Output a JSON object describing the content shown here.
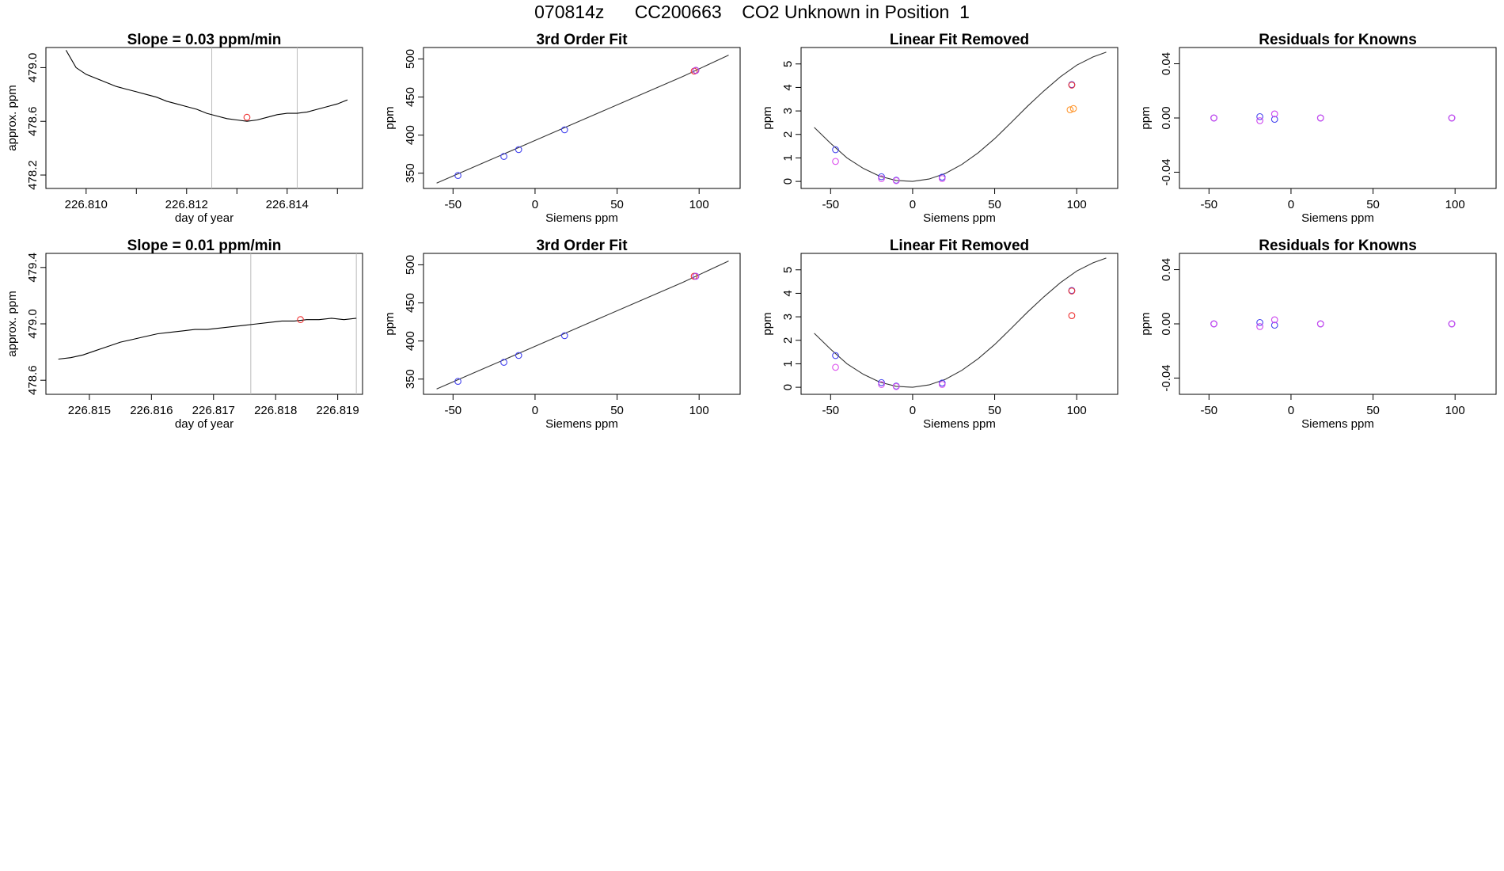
{
  "header": {
    "title": "070814z      CC200663    CO2 Unknown in Position  1"
  },
  "chart_data": [
    {
      "type": "line",
      "panel": "row1-col1",
      "title": "Slope =  0.03  ppm/min",
      "xlabel": "day of year",
      "ylabel": "approx. ppm",
      "xlim": [
        226.8092,
        226.8155
      ],
      "ylim": [
        478.1,
        479.15
      ],
      "xticks": [
        226.81,
        226.811,
        226.812,
        226.813,
        226.814,
        226.815
      ],
      "xtick_labels": [
        "226.810",
        "",
        "226.812",
        "",
        "226.814",
        ""
      ],
      "yticks": [
        478.2,
        478.6,
        479.0
      ],
      "ytick_labels": [
        "478.2",
        "478.6",
        "479.0"
      ],
      "vlines": [
        226.8125,
        226.8142
      ],
      "vline_color": "#bbbbbb",
      "series": [
        {
          "x": [
            226.8096,
            226.8098,
            226.81,
            226.8102,
            226.8104,
            226.8106,
            226.8108,
            226.811,
            226.8112,
            226.8114,
            226.8116,
            226.8118,
            226.812,
            226.8122,
            226.8124,
            226.8126,
            226.8128,
            226.813,
            226.8132,
            226.8134,
            226.8136,
            226.8138,
            226.814,
            226.8142,
            226.8144,
            226.8146,
            226.8148,
            226.815,
            226.8152
          ],
          "y": [
            479.13,
            479.0,
            478.95,
            478.92,
            478.89,
            478.86,
            478.84,
            478.82,
            478.8,
            478.78,
            478.75,
            478.73,
            478.71,
            478.69,
            478.66,
            478.64,
            478.62,
            478.61,
            478.6,
            478.61,
            478.63,
            478.65,
            478.66,
            478.66,
            478.67,
            478.69,
            478.71,
            478.73,
            478.76
          ],
          "color": "#000000"
        }
      ],
      "points": [
        {
          "x": 226.8132,
          "y": 478.63,
          "color": "#ee3333"
        }
      ]
    },
    {
      "type": "scatter",
      "panel": "row1-col2",
      "title": "3rd Order Fit",
      "xlabel": "Siemens ppm",
      "ylabel": "ppm",
      "xlim": [
        -68,
        125
      ],
      "ylim": [
        330,
        515
      ],
      "xticks": [
        -50,
        0,
        50,
        100
      ],
      "yticks": [
        350,
        400,
        450,
        500
      ],
      "curve": {
        "x": [
          -60,
          -30,
          0,
          30,
          60,
          90,
          118
        ],
        "y": [
          337,
          365,
          393,
          421,
          449,
          477,
          505
        ]
      },
      "series": [
        {
          "name": "",
          "color": "#4444ee",
          "x": [
            -47,
            -19,
            -10,
            18
          ],
          "y": [
            347,
            372,
            381,
            407
          ]
        },
        {
          "name": "",
          "color": "#ee3333",
          "x": [
            97,
            98
          ],
          "y": [
            484,
            485
          ]
        },
        {
          "name": "",
          "color": "#aa44ee",
          "x": [
            98
          ],
          "y": [
            485
          ]
        }
      ]
    },
    {
      "type": "scatter",
      "panel": "row1-col3",
      "title": "Linear Fit Removed",
      "xlabel": "Siemens ppm",
      "ylabel": "ppm",
      "xlim": [
        -68,
        125
      ],
      "ylim": [
        -0.3,
        5.7
      ],
      "xticks": [
        -50,
        0,
        50,
        100
      ],
      "yticks": [
        0,
        1,
        2,
        3,
        4,
        5
      ],
      "curve": {
        "x": [
          -60,
          -50,
          -40,
          -30,
          -20,
          -10,
          0,
          10,
          20,
          30,
          40,
          50,
          60,
          70,
          80,
          90,
          100,
          110,
          118
        ],
        "y": [
          2.3,
          1.62,
          1.0,
          0.55,
          0.22,
          0.04,
          0.0,
          0.1,
          0.34,
          0.72,
          1.22,
          1.82,
          2.5,
          3.2,
          3.85,
          4.45,
          4.95,
          5.3,
          5.5
        ]
      },
      "series": [
        {
          "name": "",
          "color": "#4444ee",
          "x": [
            -47,
            -19,
            -10,
            18,
            97
          ],
          "y": [
            1.35,
            0.2,
            0.05,
            0.18,
            4.12
          ]
        },
        {
          "name": "",
          "color": "#dd55ee",
          "x": [
            -47,
            -19,
            -10,
            18
          ],
          "y": [
            0.85,
            0.12,
            0.03,
            0.12
          ]
        },
        {
          "name": "",
          "color": "#ee3333",
          "x": [
            97
          ],
          "y": [
            4.1
          ]
        },
        {
          "name": "",
          "color": "#ff9933",
          "x": [
            96,
            98
          ],
          "y": [
            3.05,
            3.1
          ]
        }
      ]
    },
    {
      "type": "scatter",
      "panel": "row1-col4",
      "title": "Residuals for Knowns",
      "xlabel": "Siemens ppm",
      "ylabel": "ppm",
      "xlim": [
        -68,
        125
      ],
      "ylim": [
        -0.052,
        0.052
      ],
      "xticks": [
        -50,
        0,
        50,
        100
      ],
      "yticks": [
        -0.04,
        0.0,
        0.04
      ],
      "ytick_labels": [
        "-0.04",
        "0.00",
        "0.04"
      ],
      "series": [
        {
          "name": "",
          "color": "#4444ee",
          "x": [
            -47,
            -19,
            -10,
            18,
            98
          ],
          "y": [
            0.0,
            0.001,
            -0.001,
            0.0,
            0.0
          ]
        },
        {
          "name": "",
          "color": "#cc44ee",
          "x": [
            -47,
            -19,
            -10,
            18,
            98
          ],
          "y": [
            0.0,
            -0.002,
            0.003,
            0.0,
            0.0
          ]
        }
      ]
    },
    {
      "type": "line",
      "panel": "row2-col1",
      "title": "Slope =  0.01  ppm/min",
      "xlabel": "day of year",
      "ylabel": "approx. ppm",
      "xlim": [
        226.8143,
        226.8194
      ],
      "ylim": [
        478.5,
        479.5
      ],
      "xticks": [
        226.815,
        226.816,
        226.817,
        226.818,
        226.819
      ],
      "xtick_labels": [
        "226.815",
        "226.816",
        "226.817",
        "226.818",
        "226.819"
      ],
      "yticks": [
        478.6,
        479.0,
        479.4
      ],
      "ytick_labels": [
        "478.6",
        "479.0",
        "479.4"
      ],
      "vlines": [
        226.8176,
        226.8193
      ],
      "vline_color": "#bbbbbb",
      "series": [
        {
          "x": [
            226.8145,
            226.8147,
            226.8149,
            226.8151,
            226.8153,
            226.8155,
            226.8157,
            226.8159,
            226.8161,
            226.8163,
            226.8165,
            226.8167,
            226.8169,
            226.8171,
            226.8173,
            226.8175,
            226.8177,
            226.8179,
            226.8181,
            226.8183,
            226.8185,
            226.8187,
            226.8189,
            226.8191,
            226.8193
          ],
          "y": [
            478.75,
            478.76,
            478.78,
            478.81,
            478.84,
            478.87,
            478.89,
            478.91,
            478.93,
            478.94,
            478.95,
            478.96,
            478.96,
            478.97,
            478.98,
            478.99,
            479.0,
            479.01,
            479.02,
            479.02,
            479.03,
            479.03,
            479.04,
            479.03,
            479.04
          ],
          "color": "#000000"
        }
      ],
      "points": [
        {
          "x": 226.8184,
          "y": 479.03,
          "color": "#ee3333"
        }
      ]
    },
    {
      "type": "scatter",
      "panel": "row2-col2",
      "title": "3rd Order Fit",
      "xlabel": "Siemens ppm",
      "ylabel": "ppm",
      "xlim": [
        -68,
        125
      ],
      "ylim": [
        330,
        515
      ],
      "xticks": [
        -50,
        0,
        50,
        100
      ],
      "yticks": [
        350,
        400,
        450,
        500
      ],
      "curve": {
        "x": [
          -60,
          -30,
          0,
          30,
          60,
          90,
          118
        ],
        "y": [
          337,
          365,
          393,
          421,
          449,
          477,
          505
        ]
      },
      "series": [
        {
          "name": "",
          "color": "#4444ee",
          "x": [
            -47,
            -19,
            -10,
            18
          ],
          "y": [
            347,
            372,
            381,
            407
          ]
        },
        {
          "name": "",
          "color": "#ee3333",
          "x": [
            97
          ],
          "y": [
            485
          ]
        },
        {
          "name": "",
          "color": "#aa44ee",
          "x": [
            98
          ],
          "y": [
            485
          ]
        }
      ]
    },
    {
      "type": "scatter",
      "panel": "row2-col3",
      "title": "Linear Fit Removed",
      "xlabel": "Siemens ppm",
      "ylabel": "ppm",
      "xlim": [
        -68,
        125
      ],
      "ylim": [
        -0.3,
        5.7
      ],
      "xticks": [
        -50,
        0,
        50,
        100
      ],
      "yticks": [
        0,
        1,
        2,
        3,
        4,
        5
      ],
      "curve": {
        "x": [
          -60,
          -50,
          -40,
          -30,
          -20,
          -10,
          0,
          10,
          20,
          30,
          40,
          50,
          60,
          70,
          80,
          90,
          100,
          110,
          118
        ],
        "y": [
          2.3,
          1.62,
          1.0,
          0.55,
          0.22,
          0.04,
          0.0,
          0.1,
          0.34,
          0.72,
          1.22,
          1.82,
          2.5,
          3.2,
          3.85,
          4.45,
          4.95,
          5.3,
          5.5
        ]
      },
      "series": [
        {
          "name": "",
          "color": "#4444ee",
          "x": [
            -47,
            -19,
            -10,
            18,
            97
          ],
          "y": [
            1.35,
            0.2,
            0.05,
            0.18,
            4.12
          ]
        },
        {
          "name": "",
          "color": "#dd55ee",
          "x": [
            -47,
            -19,
            -10,
            18
          ],
          "y": [
            0.85,
            0.12,
            0.03,
            0.12
          ]
        },
        {
          "name": "",
          "color": "#ee3333",
          "x": [
            97,
            97
          ],
          "y": [
            4.1,
            3.05
          ]
        }
      ]
    },
    {
      "type": "scatter",
      "panel": "row2-col4",
      "title": "Residuals for Knowns",
      "xlabel": "Siemens ppm",
      "ylabel": "ppm",
      "xlim": [
        -68,
        125
      ],
      "ylim": [
        -0.052,
        0.052
      ],
      "xticks": [
        -50,
        0,
        50,
        100
      ],
      "yticks": [
        -0.04,
        0.0,
        0.04
      ],
      "ytick_labels": [
        "-0.04",
        "0.00",
        "0.04"
      ],
      "series": [
        {
          "name": "",
          "color": "#4444ee",
          "x": [
            -47,
            -19,
            -10,
            18,
            98
          ],
          "y": [
            0.0,
            0.001,
            -0.001,
            0.0,
            0.0
          ]
        },
        {
          "name": "",
          "color": "#cc44ee",
          "x": [
            -47,
            -19,
            -10,
            18,
            98
          ],
          "y": [
            0.0,
            -0.002,
            0.003,
            0.0,
            0.0
          ]
        }
      ]
    }
  ]
}
